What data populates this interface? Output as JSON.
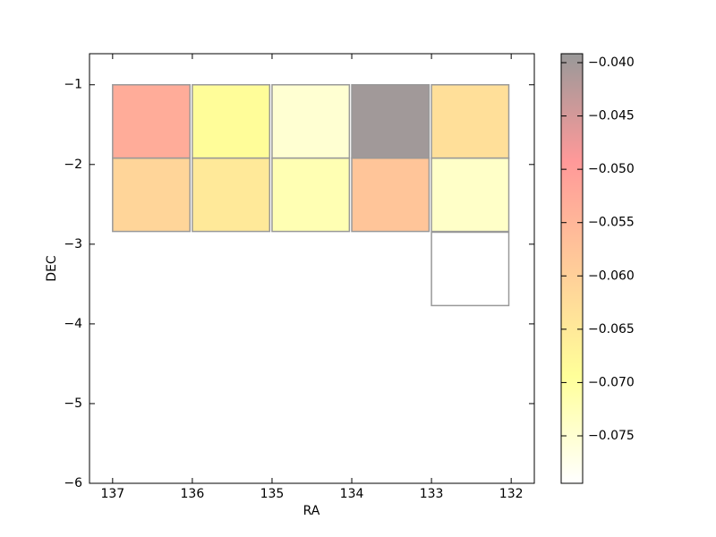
{
  "chart_data": {
    "type": "heatmap",
    "x_label": "RA",
    "y_label": "DEC",
    "x": [
      137,
      136,
      135,
      134,
      133,
      137,
      136,
      135,
      134,
      133,
      133
    ],
    "y": [
      -1,
      -1,
      -1,
      -1,
      -1,
      -1.92,
      -1.92,
      -1.92,
      -1.92,
      -1.92,
      -2.85
    ],
    "values": [
      -0.053,
      -0.069,
      -0.075,
      -0.04,
      -0.063,
      -0.061,
      -0.065,
      -0.072,
      -0.058,
      -0.074,
      -0.0795
    ],
    "cell_size": [
      0.97,
      0.92
    ],
    "xlim": [
      137.29,
      131.71
    ],
    "ylim": [
      -6,
      -0.61
    ],
    "xticks": [
      137,
      136,
      135,
      134,
      133,
      132
    ],
    "yticks": [
      {
        "value": -1,
        "label": "−1"
      },
      {
        "value": -2,
        "label": "−2"
      },
      {
        "value": -3,
        "label": "−3"
      },
      {
        "value": -4,
        "label": "−4"
      },
      {
        "value": -5,
        "label": "−5"
      },
      {
        "value": -6,
        "label": "−6"
      }
    ],
    "clim": [
      -0.07945,
      -0.03916
    ],
    "cticks": [
      {
        "value": -0.04,
        "label": "−0.040"
      },
      {
        "value": -0.045,
        "label": "−0.045"
      },
      {
        "value": -0.05,
        "label": "−0.050"
      },
      {
        "value": -0.055,
        "label": "−0.055"
      },
      {
        "value": -0.06,
        "label": "−0.060"
      },
      {
        "value": -0.065,
        "label": "−0.065"
      },
      {
        "value": -0.07,
        "label": "−0.070"
      },
      {
        "value": -0.075,
        "label": "−0.075"
      }
    ],
    "colormap": [
      "#ffffff",
      "#ffff00",
      "#ff8000",
      "#ff0000",
      "#000000"
    ],
    "alpha": 0.4,
    "edge_color": "#999999"
  }
}
